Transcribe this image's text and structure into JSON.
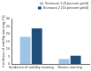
{
  "chart_data": {
    "type": "bar",
    "y_label": "Incidence of viability warning (%)",
    "categories": [
      "Incidence of viability warning",
      "Severe warning"
    ],
    "series": [
      {
        "name": "Scenario 1 (8 percent yield)",
        "color": "#9dc3e6",
        "values": [
          18,
          3.3
        ]
      },
      {
        "name": "Scenario 2 (10 percent yield)",
        "color": "#1f4e79",
        "values": [
          23.5,
          5.5
        ]
      }
    ],
    "ylim": [
      0,
      30
    ],
    "yticks": [
      0,
      5,
      10,
      15,
      20,
      25,
      30
    ],
    "grid": false,
    "legend": "top right"
  }
}
